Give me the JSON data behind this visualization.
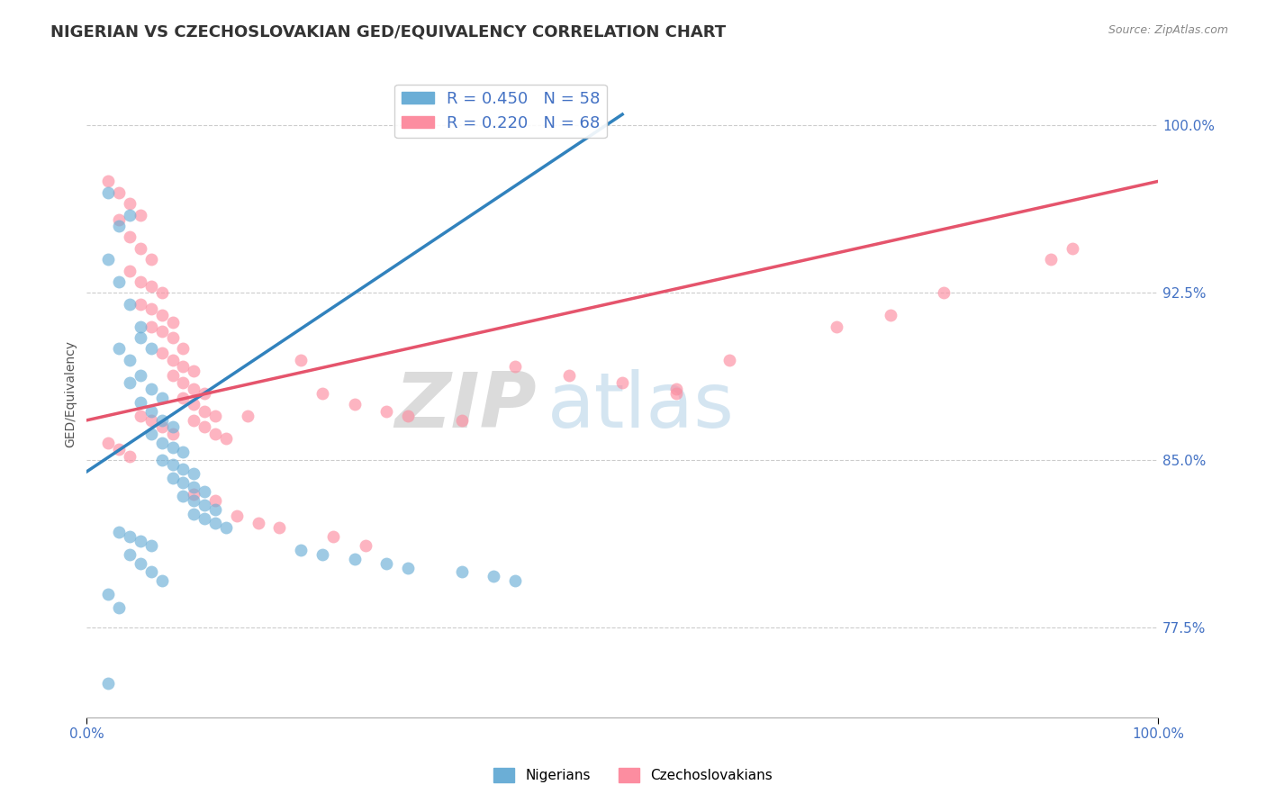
{
  "title": "NIGERIAN VS CZECHOSLOVAKIAN GED/EQUIVALENCY CORRELATION CHART",
  "source": "Source: ZipAtlas.com",
  "ylabel": "GED/Equivalency",
  "xlim": [
    0.0,
    1.0
  ],
  "ylim": [
    0.735,
    1.025
  ],
  "yticks": [
    0.775,
    0.85,
    0.925,
    1.0
  ],
  "ytick_labels": [
    "77.5%",
    "85.0%",
    "92.5%",
    "100.0%"
  ],
  "xtick_labels": [
    "0.0%",
    "100.0%"
  ],
  "xticks": [
    0.0,
    1.0
  ],
  "blue_label": "Nigerians",
  "pink_label": "Czechoslovakians",
  "blue_R": 0.45,
  "blue_N": 58,
  "pink_R": 0.22,
  "pink_N": 68,
  "blue_color": "#6baed6",
  "pink_color": "#fc8da0",
  "blue_line_color": "#3182bd",
  "pink_line_color": "#e5546c",
  "background_color": "#ffffff",
  "grid_color": "#cccccc",
  "watermark_zip": "ZIP",
  "watermark_atlas": "atlas",
  "title_fontsize": 13,
  "axis_label_fontsize": 10,
  "legend_fontsize": 13,
  "tick_label_color": "#4472c4",
  "blue_line_x0": 0.0,
  "blue_line_y0": 0.845,
  "blue_line_x1": 0.5,
  "blue_line_y1": 1.005,
  "pink_line_x0": 0.0,
  "pink_line_x1": 1.0,
  "pink_line_y0": 0.868,
  "pink_line_y1": 0.975,
  "blue_scatter_x": [
    0.02,
    0.03,
    0.04,
    0.02,
    0.03,
    0.04,
    0.05,
    0.03,
    0.04,
    0.05,
    0.06,
    0.04,
    0.05,
    0.06,
    0.07,
    0.05,
    0.06,
    0.07,
    0.08,
    0.06,
    0.07,
    0.08,
    0.09,
    0.07,
    0.08,
    0.09,
    0.1,
    0.08,
    0.09,
    0.1,
    0.11,
    0.09,
    0.1,
    0.11,
    0.12,
    0.1,
    0.11,
    0.12,
    0.13,
    0.03,
    0.04,
    0.05,
    0.06,
    0.04,
    0.05,
    0.06,
    0.07,
    0.2,
    0.22,
    0.25,
    0.28,
    0.3,
    0.35,
    0.38,
    0.4,
    0.02,
    0.03,
    0.02
  ],
  "blue_scatter_y": [
    0.97,
    0.955,
    0.96,
    0.94,
    0.93,
    0.92,
    0.91,
    0.9,
    0.895,
    0.905,
    0.9,
    0.885,
    0.888,
    0.882,
    0.878,
    0.876,
    0.872,
    0.868,
    0.865,
    0.862,
    0.858,
    0.856,
    0.854,
    0.85,
    0.848,
    0.846,
    0.844,
    0.842,
    0.84,
    0.838,
    0.836,
    0.834,
    0.832,
    0.83,
    0.828,
    0.826,
    0.824,
    0.822,
    0.82,
    0.818,
    0.816,
    0.814,
    0.812,
    0.808,
    0.804,
    0.8,
    0.796,
    0.81,
    0.808,
    0.806,
    0.804,
    0.802,
    0.8,
    0.798,
    0.796,
    0.79,
    0.784,
    0.75
  ],
  "pink_scatter_x": [
    0.02,
    0.03,
    0.04,
    0.05,
    0.03,
    0.04,
    0.05,
    0.06,
    0.04,
    0.05,
    0.06,
    0.07,
    0.05,
    0.06,
    0.07,
    0.08,
    0.06,
    0.07,
    0.08,
    0.09,
    0.07,
    0.08,
    0.09,
    0.1,
    0.08,
    0.09,
    0.1,
    0.11,
    0.09,
    0.1,
    0.11,
    0.12,
    0.1,
    0.11,
    0.12,
    0.13,
    0.05,
    0.06,
    0.07,
    0.08,
    0.15,
    0.2,
    0.22,
    0.25,
    0.28,
    0.3,
    0.35,
    0.4,
    0.45,
    0.5,
    0.55,
    0.02,
    0.03,
    0.04,
    0.55,
    0.6,
    0.7,
    0.75,
    0.8,
    0.9,
    0.92,
    0.1,
    0.12,
    0.18,
    0.23,
    0.26,
    0.14,
    0.16
  ],
  "pink_scatter_y": [
    0.975,
    0.97,
    0.965,
    0.96,
    0.958,
    0.95,
    0.945,
    0.94,
    0.935,
    0.93,
    0.928,
    0.925,
    0.92,
    0.918,
    0.915,
    0.912,
    0.91,
    0.908,
    0.905,
    0.9,
    0.898,
    0.895,
    0.892,
    0.89,
    0.888,
    0.885,
    0.882,
    0.88,
    0.878,
    0.875,
    0.872,
    0.87,
    0.868,
    0.865,
    0.862,
    0.86,
    0.87,
    0.868,
    0.865,
    0.862,
    0.87,
    0.895,
    0.88,
    0.875,
    0.872,
    0.87,
    0.868,
    0.892,
    0.888,
    0.885,
    0.882,
    0.858,
    0.855,
    0.852,
    0.88,
    0.895,
    0.91,
    0.915,
    0.925,
    0.94,
    0.945,
    0.835,
    0.832,
    0.82,
    0.816,
    0.812,
    0.825,
    0.822
  ]
}
